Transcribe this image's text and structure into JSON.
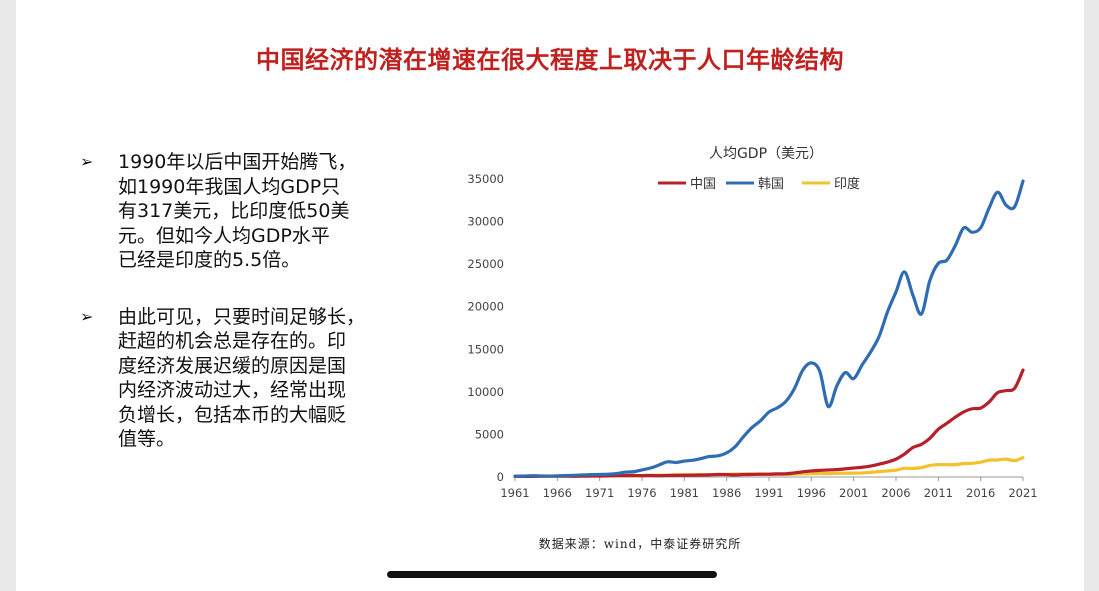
{
  "slide": {
    "title": "中国经济的潜在增速在很大程度上取决于人口年龄结构",
    "bullets": [
      {
        "arrow": "➢",
        "lines": [
          "1990年以后中国开始腾飞，",
          "如1990年我国人均GDP只",
          "有317美元，比印度低50美",
          "元。但如今人均GDP水平",
          "已经是印度的5.5倍。"
        ]
      },
      {
        "arrow": "➢",
        "lines": [
          "由此可见，只要时间足够长，",
          "赶超的机会总是存在的。印",
          "度经济发展迟缓的原因是国",
          "内经济波动过大，经常出现",
          "负增长，包括本币的大幅贬",
          "值等。"
        ]
      }
    ],
    "source": "数据来源：wind，中泰证券研究所"
  },
  "chart_data": {
    "type": "line",
    "title": "人均GDP（美元）",
    "xlabel": "",
    "ylabel": "",
    "xlim": [
      1961,
      2021
    ],
    "ylim": [
      0,
      35000
    ],
    "x_ticks": [
      "1961",
      "1966",
      "1971",
      "1976",
      "1981",
      "1986",
      "1991",
      "1996",
      "2001",
      "2006",
      "2011",
      "2016",
      "2021"
    ],
    "y_ticks": [
      "0",
      "5000",
      "10000",
      "15000",
      "20000",
      "25000",
      "30000",
      "35000"
    ],
    "grid": false,
    "legend_position": "top",
    "x": [
      1961,
      1962,
      1963,
      1964,
      1965,
      1966,
      1967,
      1968,
      1969,
      1970,
      1971,
      1972,
      1973,
      1974,
      1975,
      1976,
      1977,
      1978,
      1979,
      1980,
      1981,
      1982,
      1983,
      1984,
      1985,
      1986,
      1987,
      1988,
      1989,
      1990,
      1991,
      1992,
      1993,
      1994,
      1995,
      1996,
      1997,
      1998,
      1999,
      2000,
      2001,
      2002,
      2003,
      2004,
      2005,
      2006,
      2007,
      2008,
      2009,
      2010,
      2011,
      2012,
      2013,
      2014,
      2015,
      2016,
      2017,
      2018,
      2019,
      2020,
      2021
    ],
    "series": [
      {
        "name": "中国",
        "color": "#b5202a",
        "values": [
          76,
          70,
          74,
          85,
          98,
          104,
          97,
          91,
          100,
          113,
          119,
          132,
          157,
          160,
          178,
          165,
          185,
          156,
          183,
          195,
          197,
          203,
          225,
          250,
          294,
          281,
          251,
          284,
          311,
          317,
          333,
          366,
          377,
          473,
          610,
          709,
          781,
          828,
          873,
          959,
          1053,
          1148,
          1288,
          1508,
          1753,
          2099,
          2694,
          3468,
          3832,
          4550,
          5614,
          6301,
          7020,
          7636,
          8016,
          8094,
          8817,
          9905,
          10144,
          10409,
          12556
        ]
      },
      {
        "name": "韩国",
        "color": "#2f6cb1",
        "values": [
          94,
          106,
          146,
          124,
          109,
          133,
          161,
          198,
          243,
          279,
          301,
          323,
          406,
          563,
          617,
          834,
          1055,
          1405,
          1784,
          1704,
          1870,
          1973,
          2180,
          2413,
          2482,
          2835,
          3555,
          4749,
          5817,
          6610,
          7637,
          8127,
          8885,
          10385,
          12565,
          13403,
          12398,
          8282,
          10672,
          12257,
          11561,
          13165,
          14673,
          16496,
          19403,
          21743,
          24086,
          21346,
          19144,
          23079,
          25098,
          25459,
          27180,
          29253,
          28737,
          29274,
          31601,
          33447,
          31929,
          31721,
          34758
        ]
      },
      {
        "name": "印度",
        "color": "#f2c12e",
        "values": [
          86,
          90,
          101,
          116,
          119,
          90,
          97,
          100,
          108,
          113,
          119,
          123,
          144,
          164,
          158,
          161,
          186,
          206,
          224,
          267,
          271,
          274,
          291,
          277,
          296,
          310,
          340,
          354,
          346,
          367,
          303,
          316,
          301,
          346,
          374,
          399,
          415,
          413,
          441,
          443,
          452,
          471,
          546,
          628,
          714,
          806,
          1028,
          999,
          1102,
          1358,
          1458,
          1444,
          1450,
          1574,
          1606,
          1733,
          1981,
          1997,
          2101,
          1913,
          2277
        ]
      }
    ]
  }
}
